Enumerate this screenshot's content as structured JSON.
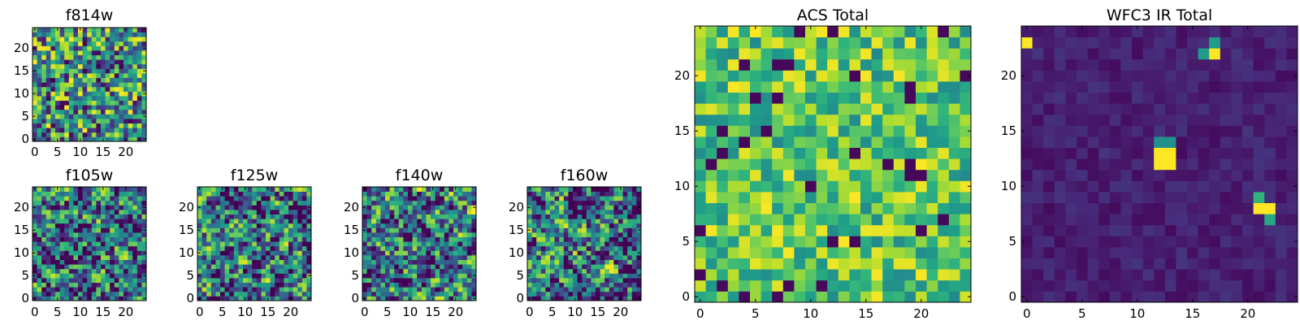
{
  "figure": {
    "colormap": "viridis"
  },
  "chart_data": [
    {
      "id": "f814w",
      "type": "heatmap",
      "title": "f814w",
      "grid_size": 25,
      "xticks": [
        "0",
        "5",
        "10",
        "15",
        "20"
      ],
      "yticks": [
        "0",
        "5",
        "10",
        "15",
        "20"
      ],
      "pattern": "noise",
      "seed": 11
    },
    {
      "id": "f105w",
      "type": "heatmap",
      "title": "f105w",
      "grid_size": 25,
      "xticks": [
        "0",
        "5",
        "10",
        "15",
        "20"
      ],
      "yticks": [
        "0",
        "5",
        "10",
        "15",
        "20"
      ],
      "pattern": "smooth-noise",
      "seed": 23
    },
    {
      "id": "f125w",
      "type": "heatmap",
      "title": "f125w",
      "grid_size": 25,
      "xticks": [
        "0",
        "5",
        "10",
        "15",
        "20"
      ],
      "yticks": [
        "0",
        "5",
        "10",
        "15",
        "20"
      ],
      "pattern": "smooth-noise",
      "seed": 37
    },
    {
      "id": "f140w",
      "type": "heatmap",
      "title": "f140w",
      "grid_size": 25,
      "xticks": [
        "0",
        "5",
        "10",
        "15",
        "20"
      ],
      "yticks": [
        "0",
        "5",
        "10",
        "15",
        "20"
      ],
      "pattern": "smooth-noise",
      "seed": 41
    },
    {
      "id": "f160w",
      "type": "heatmap",
      "title": "f160w",
      "grid_size": 25,
      "xticks": [
        "0",
        "5",
        "10",
        "15",
        "20"
      ],
      "yticks": [
        "0",
        "5",
        "10",
        "15",
        "20"
      ],
      "pattern": "smooth-noise",
      "seed": 53
    },
    {
      "id": "acs",
      "type": "heatmap",
      "title": "ACS Total",
      "grid_size": 25,
      "xticks": [
        "0",
        "5",
        "10",
        "15",
        "20"
      ],
      "yticks": [
        "0",
        "5",
        "10",
        "15",
        "20"
      ],
      "pattern": "bright-noise",
      "seed": 67
    },
    {
      "id": "wfc3",
      "type": "heatmap",
      "title": "WFC3 IR Total",
      "grid_size": 25,
      "xticks": [
        "0",
        "5",
        "10",
        "15",
        "20"
      ],
      "yticks": [
        "0",
        "5",
        "10",
        "15",
        "20"
      ],
      "pattern": "sources",
      "seed": 79,
      "sources": [
        {
          "x": 12,
          "y": 12,
          "value": 1.0
        },
        {
          "x": 13,
          "y": 12,
          "value": 1.0
        },
        {
          "x": 12,
          "y": 13,
          "value": 1.0
        },
        {
          "x": 13,
          "y": 13,
          "value": 1.0
        },
        {
          "x": 12,
          "y": 14,
          "value": 0.5
        },
        {
          "x": 13,
          "y": 14,
          "value": 0.5
        },
        {
          "x": 21,
          "y": 8,
          "value": 1.0
        },
        {
          "x": 22,
          "y": 8,
          "value": 1.0
        },
        {
          "x": 21,
          "y": 9,
          "value": 0.65
        },
        {
          "x": 22,
          "y": 7,
          "value": 0.6
        },
        {
          "x": 0,
          "y": 23,
          "value": 1.0
        },
        {
          "x": 17,
          "y": 22,
          "value": 1.0
        },
        {
          "x": 17,
          "y": 23,
          "value": 0.55
        },
        {
          "x": 16,
          "y": 22,
          "value": 0.55
        }
      ]
    }
  ]
}
